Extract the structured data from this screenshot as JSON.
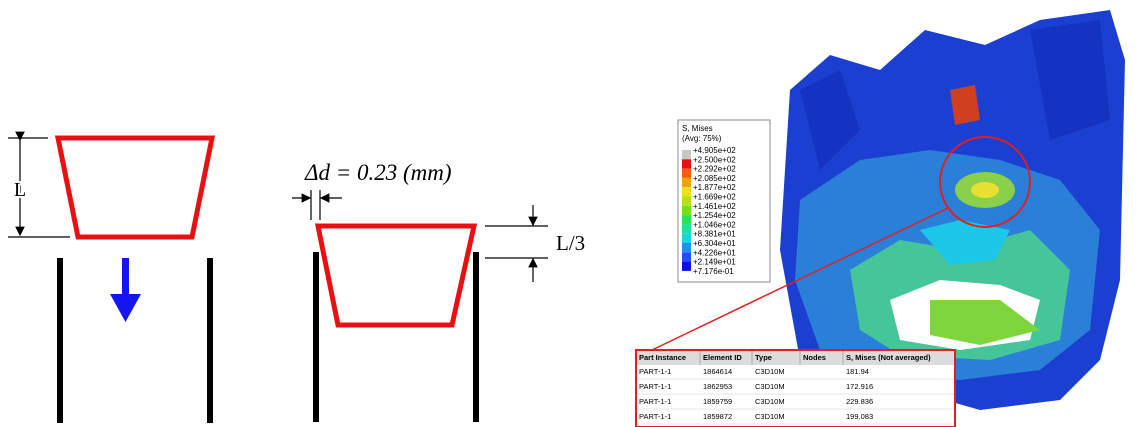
{
  "left_diagram": {
    "length_label": "L",
    "offset_label": "Δd = 0.23 (mm)",
    "insert_label": "L/3"
  },
  "legend": {
    "title": "S, Mises",
    "subtitle": "(Avg: 75%)",
    "labels": [
      "+4.905e+02",
      "+2.500e+02",
      "+2.292e+02",
      "+2.085e+02",
      "+1.877e+02",
      "+1.669e+02",
      "+1.461e+02",
      "+1.254e+02",
      "+1.046e+02",
      "+8.381e+01",
      "+6.304e+01",
      "+4.226e+01",
      "+2.149e+01",
      "+7.176e-01"
    ]
  },
  "table": {
    "headers": [
      "Part Instance",
      "Element ID",
      "Type",
      "Nodes",
      "S, Mises (Not averaged)"
    ],
    "rows": [
      {
        "instance": "PART-1-1",
        "element_id": 1864614,
        "type": "C3D10M",
        "mises": 181.94
      },
      {
        "instance": "PART-1-1",
        "element_id": 1862953,
        "type": "C3D10M",
        "mises": 172.916
      },
      {
        "instance": "PART-1-1",
        "element_id": 1859759,
        "type": "C3D10M",
        "mises": 229.836
      },
      {
        "instance": "PART-1-1",
        "element_id": 1859872,
        "type": "C3D10M",
        "mises": 199.083
      }
    ]
  }
}
